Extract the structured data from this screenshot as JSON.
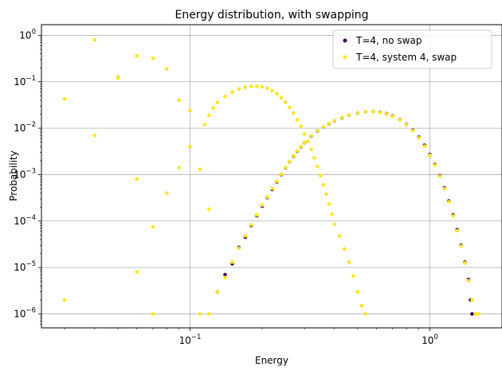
{
  "chart_data": {
    "type": "scatter",
    "title": "Energy distribution, with swapping",
    "xlabel": "Energy",
    "ylabel": "Probability",
    "xscale": "log",
    "yscale": "log",
    "xlim": [
      0.024,
      2.0
    ],
    "ylim": [
      5e-07,
      1.7
    ],
    "grid": true,
    "legend_position": "top-right",
    "x_ticks": [
      {
        "value": 0.1,
        "base": "10",
        "exp": "−1"
      },
      {
        "value": 1.0,
        "base": "10",
        "exp": "0"
      }
    ],
    "y_ticks": [
      {
        "value": 1e-06,
        "base": "10",
        "exp": "−6"
      },
      {
        "value": 1e-05,
        "base": "10",
        "exp": "−5"
      },
      {
        "value": 0.0001,
        "base": "10",
        "exp": "−4"
      },
      {
        "value": 0.001,
        "base": "10",
        "exp": "−3"
      },
      {
        "value": 0.01,
        "base": "10",
        "exp": "−2"
      },
      {
        "value": 0.1,
        "base": "10",
        "exp": "−1"
      },
      {
        "value": 1,
        "base": "10",
        "exp": "0"
      }
    ],
    "series": [
      {
        "name": "T=4, no swap",
        "color": "#440154",
        "points": [
          [
            0.13,
            3e-06
          ],
          [
            0.14,
            7e-06
          ],
          [
            0.15,
            1.2e-05
          ],
          [
            0.16,
            2.7e-05
          ],
          [
            0.17,
            4.5e-05
          ],
          [
            0.18,
            8e-05
          ],
          [
            0.19,
            0.00013
          ],
          [
            0.2,
            0.00021
          ],
          [
            0.21,
            0.00032
          ],
          [
            0.22,
            0.00048
          ],
          [
            0.23,
            0.0007
          ],
          [
            0.24,
            0.001
          ],
          [
            0.25,
            0.0014
          ],
          [
            0.26,
            0.0019
          ],
          [
            0.27,
            0.0025
          ],
          [
            0.28,
            0.0032
          ],
          [
            0.29,
            0.004
          ],
          [
            0.3,
            0.0049
          ],
          [
            0.32,
            0.0068
          ],
          [
            0.34,
            0.0087
          ],
          [
            0.36,
            0.0106
          ],
          [
            0.38,
            0.0125
          ],
          [
            0.4,
            0.0143
          ],
          [
            0.43,
            0.0168
          ],
          [
            0.46,
            0.019
          ],
          [
            0.5,
            0.0212
          ],
          [
            0.54,
            0.0225
          ],
          [
            0.58,
            0.0228
          ],
          [
            0.62,
            0.022
          ],
          [
            0.66,
            0.0205
          ],
          [
            0.7,
            0.0183
          ],
          [
            0.75,
            0.0152
          ],
          [
            0.8,
            0.012
          ],
          [
            0.85,
            0.009
          ],
          [
            0.9,
            0.0064
          ],
          [
            0.95,
            0.0043
          ],
          [
            1.0,
            0.0027
          ],
          [
            1.05,
            0.00165
          ],
          [
            1.1,
            0.00095
          ],
          [
            1.15,
            0.00052
          ],
          [
            1.2,
            0.00027
          ],
          [
            1.25,
            0.000135
          ],
          [
            1.3,
            6.5e-05
          ],
          [
            1.35,
            3e-05
          ],
          [
            1.4,
            1.3e-05
          ],
          [
            1.45,
            5.5e-06
          ],
          [
            1.48,
            2e-06
          ],
          [
            1.5,
            1e-06
          ]
        ]
      },
      {
        "name": "T=4, system 4, swap",
        "color": "#fde725",
        "points": [
          [
            0.03,
            0.043
          ],
          [
            0.03,
            2e-06
          ],
          [
            0.04,
            0.8
          ],
          [
            0.04,
            0.007
          ],
          [
            0.05,
            0.13
          ],
          [
            0.05,
            0.12
          ],
          [
            0.06,
            0.36
          ],
          [
            0.06,
            0.0008
          ],
          [
            0.06,
            8e-06
          ],
          [
            0.07,
            0.32
          ],
          [
            0.07,
            7.5e-05
          ],
          [
            0.07,
            1e-06
          ],
          [
            0.08,
            0.19
          ],
          [
            0.08,
            0.0004
          ],
          [
            0.09,
            0.04
          ],
          [
            0.09,
            0.0014
          ],
          [
            0.1,
            0.004
          ],
          [
            0.1,
            0.024
          ],
          [
            0.11,
            0.0013
          ],
          [
            0.11,
            1e-06
          ],
          [
            0.12,
            0.00018
          ],
          [
            0.12,
            1e-06
          ],
          [
            0.115,
            0.012
          ],
          [
            0.12,
            0.019
          ],
          [
            0.125,
            0.027
          ],
          [
            0.13,
            0.036
          ],
          [
            0.14,
            0.048
          ],
          [
            0.15,
            0.06
          ],
          [
            0.16,
            0.07
          ],
          [
            0.17,
            0.076
          ],
          [
            0.18,
            0.08
          ],
          [
            0.19,
            0.08
          ],
          [
            0.2,
            0.078
          ],
          [
            0.21,
            0.072
          ],
          [
            0.22,
            0.064
          ],
          [
            0.23,
            0.055
          ],
          [
            0.24,
            0.045
          ],
          [
            0.25,
            0.036
          ],
          [
            0.26,
            0.028
          ],
          [
            0.27,
            0.021
          ],
          [
            0.28,
            0.015
          ],
          [
            0.29,
            0.011
          ],
          [
            0.3,
            0.0075
          ],
          [
            0.31,
            0.0052
          ],
          [
            0.32,
            0.0035
          ],
          [
            0.33,
            0.0023
          ],
          [
            0.34,
            0.0015
          ],
          [
            0.35,
            0.00095
          ],
          [
            0.36,
            0.0006
          ],
          [
            0.37,
            0.00038
          ],
          [
            0.38,
            0.00023
          ],
          [
            0.39,
            0.00014
          ],
          [
            0.4,
            8.5e-05
          ],
          [
            0.42,
            4.8e-05
          ],
          [
            0.44,
            2.5e-05
          ],
          [
            0.46,
            1.3e-05
          ],
          [
            0.48,
            6.5e-06
          ],
          [
            0.5,
            3e-06
          ],
          [
            0.52,
            1.5e-06
          ],
          [
            0.54,
            1e-06
          ],
          [
            0.13,
            3e-06
          ],
          [
            0.14,
            6e-06
          ],
          [
            0.15,
            1.3e-05
          ],
          [
            0.16,
            2.6e-05
          ],
          [
            0.17,
            4.8e-05
          ],
          [
            0.18,
            8.3e-05
          ],
          [
            0.19,
            0.000135
          ],
          [
            0.2,
            0.00022
          ],
          [
            0.21,
            0.00033
          ],
          [
            0.22,
            0.0005
          ],
          [
            0.23,
            0.00072
          ],
          [
            0.24,
            0.00102
          ],
          [
            0.25,
            0.00142
          ],
          [
            0.26,
            0.00192
          ],
          [
            0.27,
            0.00255
          ],
          [
            0.28,
            0.00325
          ],
          [
            0.29,
            0.00405
          ],
          [
            0.3,
            0.00495
          ],
          [
            0.32,
            0.0069
          ],
          [
            0.34,
            0.0088
          ],
          [
            0.36,
            0.0107
          ],
          [
            0.38,
            0.0126
          ],
          [
            0.4,
            0.0144
          ],
          [
            0.43,
            0.017
          ],
          [
            0.46,
            0.0191
          ],
          [
            0.5,
            0.0213
          ],
          [
            0.54,
            0.0226
          ],
          [
            0.58,
            0.0227
          ],
          [
            0.62,
            0.0218
          ],
          [
            0.66,
            0.0202
          ],
          [
            0.7,
            0.018
          ],
          [
            0.75,
            0.015
          ],
          [
            0.8,
            0.0118
          ],
          [
            0.85,
            0.0088
          ],
          [
            0.9,
            0.0062
          ],
          [
            0.95,
            0.0041
          ],
          [
            1.0,
            0.0026
          ],
          [
            1.05,
            0.0016
          ],
          [
            1.1,
            0.00092
          ],
          [
            1.15,
            0.0005
          ],
          [
            1.2,
            0.00026
          ],
          [
            1.25,
            0.00013
          ],
          [
            1.3,
            6.2e-05
          ],
          [
            1.35,
            2.9e-05
          ],
          [
            1.4,
            1.25e-05
          ],
          [
            1.45,
            5.2e-06
          ],
          [
            1.5,
            2e-06
          ],
          [
            1.55,
            1e-06
          ],
          [
            1.6,
            1e-06
          ]
        ]
      }
    ]
  }
}
